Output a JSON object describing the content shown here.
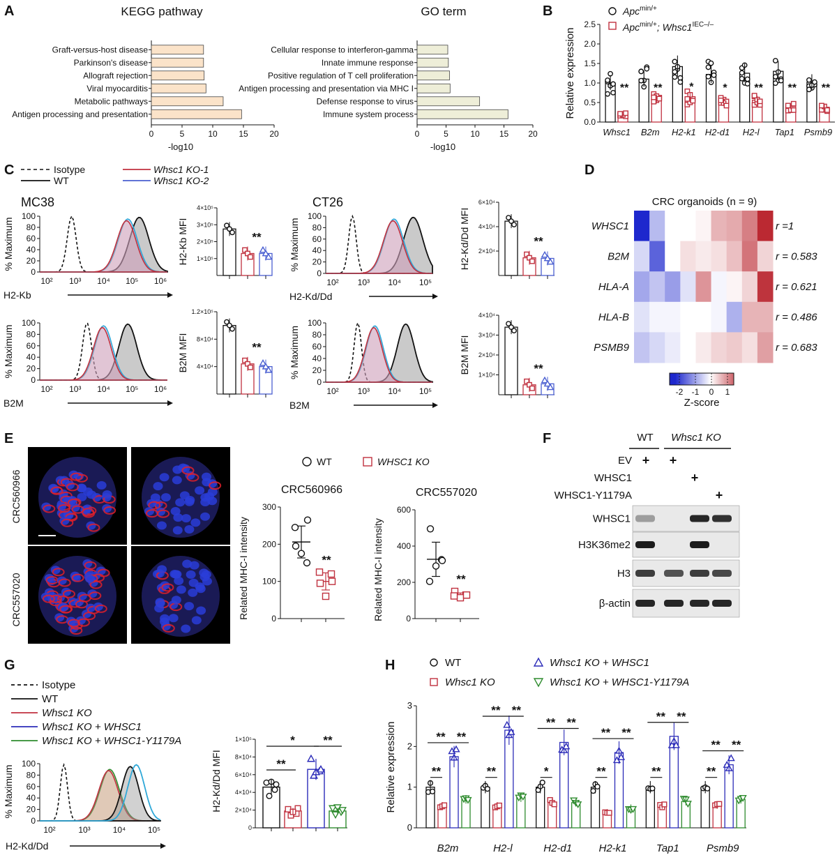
{
  "panel_letters": [
    "A",
    "B",
    "C",
    "D",
    "E",
    "F",
    "G",
    "H"
  ],
  "colors": {
    "wt": "#111111",
    "ko": "#c0313f",
    "ko2": "#4a5fd1",
    "rescue": "#2b2bb8",
    "mutant": "#2e8b2e",
    "isotype": "#111111",
    "kegg_bar": "#fbe3c9",
    "go_bar": "#eeeed8",
    "accent_cyan": "#2fa8d8"
  },
  "chart_data": [
    {
      "panel": "A-left",
      "type": "bar",
      "orientation": "horizontal",
      "title": "KEGG pathway",
      "xlabel": "-log10",
      "categories": [
        "Graft-versus-host disease",
        "Parkinson's disease",
        "Allograft rejection",
        "Viral myocarditis",
        "Metabolic pathways",
        "Antigen processing and presentation"
      ],
      "values": [
        8.5,
        8.5,
        8.6,
        8.9,
        11.7,
        14.7
      ],
      "xlim": [
        0,
        20
      ],
      "xticks": [
        "0",
        "5",
        "10",
        "15",
        "20"
      ]
    },
    {
      "panel": "A-right",
      "type": "bar",
      "orientation": "horizontal",
      "title": "GO term",
      "xlabel": "-log10",
      "categories": [
        "Cellular response to interferon-gamma",
        "Innate immune response",
        "Positive regulation of T cell proliferation",
        "Antigen processing and presentation via MHC I",
        "Defense response to virus",
        "Immune system process"
      ],
      "values": [
        5.3,
        5.4,
        5.6,
        5.7,
        10.8,
        15.7
      ],
      "xlim": [
        0,
        20
      ],
      "xticks": [
        "0",
        "5",
        "10",
        "15",
        "20"
      ]
    },
    {
      "panel": "B",
      "type": "bar",
      "ylabel": "Relative expression",
      "ylim": [
        0,
        2.5
      ],
      "yticks": [
        "0.0",
        "0.5",
        "1.0",
        "1.5",
        "2.0",
        "2.5"
      ],
      "legend": [
        "Apc",
        "Apc"
      ],
      "legend_sup": [
        "min/+",
        "min/+"
      ],
      "legend_rest": [
        "",
        "; Whsc1"
      ],
      "legend_sup2": [
        "",
        "IEC–/–"
      ],
      "categories": [
        "Whsc1",
        "B2m",
        "H2-k1",
        "H2-d1",
        "H2-l",
        "Tap1",
        "Psmb9"
      ],
      "series": [
        {
          "values": [
            1.0,
            1.1,
            1.42,
            1.22,
            1.25,
            1.3,
            1.02
          ]
        },
        {
          "values": [
            0.18,
            0.58,
            0.62,
            0.5,
            0.56,
            0.4,
            0.38
          ]
        }
      ],
      "sig": [
        "**",
        "**",
        "*",
        "*",
        "**",
        "**",
        "**"
      ]
    },
    {
      "panel": "C",
      "type": "bar",
      "legend": [
        "Isotype",
        "WT",
        "Whsc1 KO-1",
        "Whsc1 KO-2"
      ],
      "plots": [
        {
          "title": "MC38",
          "xlabel": "H2-Kb",
          "ylabel": "% Maximum",
          "xticks": [
            "10²",
            "10³",
            "10⁴",
            "10⁵",
            "10⁶"
          ],
          "yticks": [
            "0",
            "20",
            "40",
            "60",
            "80",
            "100"
          ],
          "bar_ylabel": "H2-Kb  MFI",
          "bar_yticks": [
            "1×10⁵",
            "2×10⁵",
            "3×10⁵",
            "4×10⁵"
          ],
          "bar_ymax": 4,
          "bar_values": [
            2.75,
            1.3,
            1.3
          ],
          "sig": "**"
        },
        {
          "title": "CT26",
          "xlabel": "H2-Kd/Dd",
          "ylabel": "% Maximum",
          "xticks": [
            "10²",
            "10³",
            "10⁴",
            "10⁵"
          ],
          "yticks": [
            "0",
            "20",
            "40",
            "60",
            "80",
            "100"
          ],
          "bar_ylabel": "H2-Kd/Dd MFI",
          "bar_yticks": [
            "2×10⁴",
            "4×10⁴",
            "6×10⁴"
          ],
          "bar_ymax": 6,
          "bar_values": [
            4.45,
            1.45,
            1.4
          ],
          "sig": "**"
        },
        {
          "title": "",
          "xlabel": "B2M",
          "ylabel": "% Maximum",
          "xticks": [
            "10²",
            "10³",
            "10⁴",
            "10⁵",
            "10⁶"
          ],
          "yticks": [
            "0",
            "20",
            "40",
            "60",
            "80",
            "100"
          ],
          "bar_ylabel": "B2M  MFI",
          "bar_yticks": [
            "4×10⁴",
            "8×10⁴",
            "1.2×10⁵"
          ],
          "bar_ymax": 12,
          "bar_values": [
            10.0,
            4.4,
            4.0
          ],
          "sig": "**"
        },
        {
          "title": "",
          "xlabel": "B2M",
          "ylabel": "% Maximum",
          "xticks": [
            "10²",
            "10³",
            "10⁴",
            "10⁵"
          ],
          "yticks": [
            "0",
            "20",
            "40",
            "60",
            "80",
            "100"
          ],
          "bar_ylabel": "B2M  MFI",
          "bar_yticks": [
            "1×10⁴",
            "2×10⁴",
            "3×10⁴",
            "4×10⁴"
          ],
          "bar_ymax": 4,
          "bar_values": [
            3.4,
            0.5,
            0.55
          ],
          "sig": "**"
        }
      ]
    },
    {
      "panel": "D",
      "type": "heatmap",
      "title": "CRC organoids (n = 9)",
      "rows": [
        "WHSC1",
        "B2M",
        "HLA-A",
        "HLA-B",
        "PSMB9"
      ],
      "r_labels": [
        "r =1",
        "r = 0.583",
        "r = 0.621",
        "r = 0.486",
        "r = 0.683"
      ],
      "colorbar_ticks": [
        "-2",
        "-1",
        "0",
        "1"
      ],
      "colorbar_label": "Z-score",
      "z": [
        [
          -2.2,
          -0.7,
          0.0,
          0.0,
          0.1,
          0.7,
          0.8,
          1.2,
          2.0
        ],
        [
          -0.4,
          -1.6,
          0.0,
          0.3,
          0.2,
          0.3,
          0.6,
          1.3,
          0.4
        ],
        [
          -0.9,
          -0.6,
          -1.0,
          -0.3,
          1.0,
          -0.1,
          0.1,
          0.4,
          1.9
        ],
        [
          -0.3,
          -0.1,
          -0.1,
          0.0,
          0.0,
          -0.1,
          -0.8,
          0.7,
          0.7
        ],
        [
          -0.6,
          -0.4,
          -0.2,
          0.0,
          0.2,
          0.4,
          0.5,
          0.3,
          0.9
        ]
      ]
    },
    {
      "panel": "E",
      "type": "scatter",
      "legend": [
        "WT",
        "WHSC1 KO"
      ],
      "col_labels": [
        "WT",
        "WHSC1 KO"
      ],
      "row_labels": [
        "CRC560966",
        "CRC557020"
      ],
      "plots": [
        {
          "title": "CRC560966",
          "ylabel": "Related MHC-I intensity",
          "ylim": [
            0,
            300
          ],
          "yticks": [
            "0",
            "100",
            "200",
            "300"
          ],
          "wt": [
            195,
            150,
            175,
            245,
            265
          ],
          "ko": [
            95,
            120,
            60,
            125,
            100
          ],
          "sig": "**"
        },
        {
          "title": "CRC557020",
          "ylabel": "Related MHC-I intensity",
          "ylim": [
            0,
            600
          ],
          "yticks": [
            "0",
            "200",
            "400",
            "600"
          ],
          "wt": [
            495,
            325,
            290,
            205,
            320
          ],
          "ko": [
            150,
            130,
            115,
            125,
            130
          ],
          "sig": "**"
        }
      ]
    },
    {
      "panel": "F",
      "type": "table",
      "header": [
        "WT",
        "Whsc1 KO"
      ],
      "rows": [
        {
          "label": "EV",
          "marks": [
            "+",
            "",
            "+",
            "",
            ""
          ]
        },
        {
          "label": "WHSC1",
          "marks": [
            "",
            "",
            "",
            "+",
            ""
          ]
        },
        {
          "label": "WHSC1-Y1179A",
          "marks": [
            "",
            "",
            "",
            "",
            "+"
          ]
        }
      ],
      "blots": [
        "WHSC1",
        "H3K36me2",
        "H3",
        "β-actin"
      ]
    },
    {
      "panel": "G",
      "type": "bar",
      "legend": [
        "Isotype",
        "WT",
        "Whsc1 KO",
        "Whsc1 KO + WHSC1",
        "Whsc1 KO + WHSC1-Y1179A"
      ],
      "hist_xlabel": "H2-Kd/Dd",
      "hist_ylabel": "% Maximum",
      "hist_xticks": [
        "10²",
        "10³",
        "10⁴",
        "10⁵"
      ],
      "hist_yticks": [
        "0",
        "20",
        "40",
        "60",
        "80",
        "100"
      ],
      "ylabel": "H2-Kd/Dd MFI",
      "yticks": [
        "0",
        "2×10⁴",
        "4×10⁴",
        "6×10⁴",
        "8×10⁴",
        "1×10⁵"
      ],
      "values": [
        4.6,
        1.9,
        6.6,
        1.9
      ],
      "points": [
        [
          5.1,
          4.3,
          3.6,
          4.9,
          5.2
        ],
        [
          2.1,
          1.6,
          1.4,
          2.2,
          1.8
        ],
        [
          7.8,
          6.4,
          5.9,
          6.6,
          6.3
        ],
        [
          2.2,
          1.8,
          1.5,
          2.0,
          2.3
        ]
      ],
      "sig": [
        "**",
        "*",
        "**"
      ]
    },
    {
      "panel": "H",
      "type": "bar",
      "legend": [
        "WT",
        "Whsc1 KO",
        "Whsc1 KO + WHSC1",
        "Whsc1 KO + WHSC1-Y1179A"
      ],
      "ylabel": "Relative expression",
      "ylim": [
        0,
        3
      ],
      "yticks": [
        "0",
        "1",
        "2",
        "3"
      ],
      "categories": [
        "B2m",
        "H2-l",
        "H2-d1",
        "H2-k1",
        "Tap1",
        "Psmb9"
      ],
      "series": [
        {
          "name": "WT",
          "values": [
            1.0,
            1.0,
            1.0,
            1.0,
            1.0,
            1.0
          ]
        },
        {
          "name": "Whsc1 KO",
          "values": [
            0.55,
            0.55,
            0.62,
            0.4,
            0.55,
            0.55
          ]
        },
        {
          "name": "Whsc1 KO + WHSC1",
          "values": [
            1.75,
            2.4,
            2.1,
            1.85,
            2.25,
            1.55
          ]
        },
        {
          "name": "Whsc1 KO + WHSC1-Y1179A",
          "values": [
            0.7,
            0.75,
            0.62,
            0.5,
            0.65,
            0.7
          ]
        }
      ],
      "sig": [
        [
          "**",
          "**",
          "**"
        ],
        [
          "**",
          "**",
          "**"
        ],
        [
          "*",
          "**",
          "**"
        ],
        [
          "**",
          "**",
          "**"
        ],
        [
          "**",
          "**",
          "**"
        ],
        [
          "**",
          "**",
          "**"
        ]
      ]
    }
  ]
}
